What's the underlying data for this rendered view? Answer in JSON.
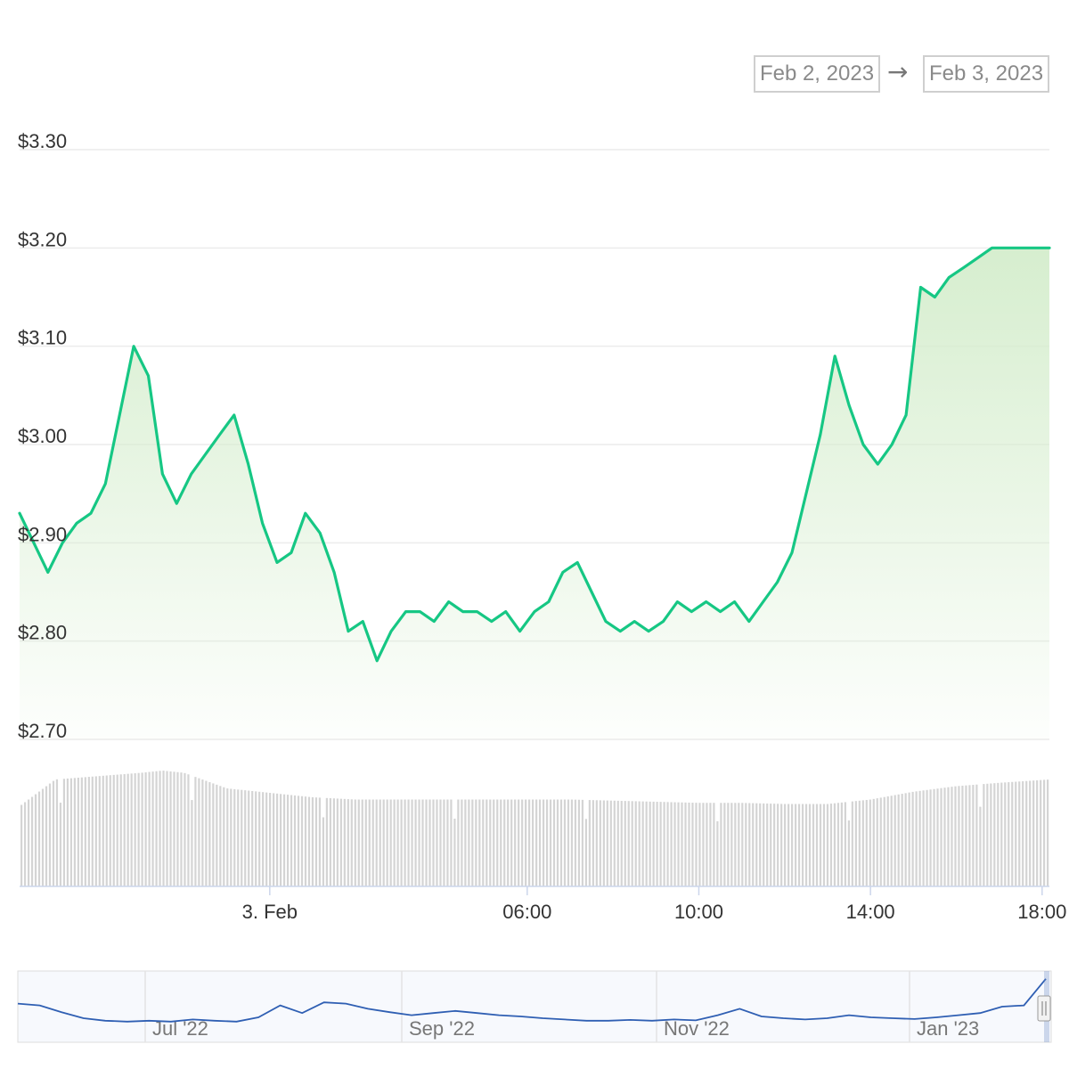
{
  "range_selector": {
    "from": "Feb 2, 2023",
    "arrow": "→",
    "to": "Feb 3, 2023"
  },
  "colors": {
    "line": "#16c784",
    "area_top": "#d4edcc",
    "volume": "#d4d4d4",
    "navigator_line": "#2f5fb3",
    "grid": "#ececec"
  },
  "chart_data": {
    "type": "line",
    "title": "",
    "xlabel": "",
    "ylabel": "",
    "y_tick_labels": [
      "$3.30",
      "$3.20",
      "$3.10",
      "$3.00",
      "$2.90",
      "$2.80",
      "$2.70"
    ],
    "y_ticks": [
      3.3,
      3.2,
      3.1,
      3.0,
      2.9,
      2.8,
      2.7
    ],
    "ylim": [
      2.7,
      3.3
    ],
    "x_tick_labels": [
      "3. Feb",
      "06:00",
      "10:00",
      "14:00",
      "18:00"
    ],
    "x_ticks_hours": [
      0,
      6,
      10,
      14,
      18
    ],
    "xlim_hours": [
      -5.83,
      18.17
    ],
    "grid": true,
    "legend": "none",
    "series": [
      {
        "x_hours": [
          -5.83,
          -5.5,
          -5.17,
          -4.83,
          -4.5,
          -4.17,
          -3.83,
          -3.5,
          -3.17,
          -2.83,
          -2.5,
          -2.17,
          -1.83,
          -1.5,
          -1.17,
          -0.83,
          -0.5,
          -0.17,
          0.17,
          0.5,
          0.83,
          1.17,
          1.5,
          1.83,
          2.17,
          2.5,
          2.83,
          3.17,
          3.5,
          3.83,
          4.17,
          4.5,
          4.83,
          5.17,
          5.5,
          5.83,
          6.17,
          6.5,
          6.83,
          7.17,
          7.5,
          7.83,
          8.17,
          8.5,
          8.83,
          9.17,
          9.5,
          9.83,
          10.17,
          10.5,
          10.83,
          11.17,
          11.5,
          11.83,
          12.17,
          12.5,
          12.83,
          13.17,
          13.5,
          13.83,
          14.17,
          14.5,
          14.83,
          15.17,
          15.5,
          15.83,
          16.17,
          16.5,
          16.83,
          17.17,
          17.5,
          17.83,
          18.17
        ],
        "values": [
          2.93,
          2.9,
          2.87,
          2.9,
          2.92,
          2.93,
          2.96,
          3.03,
          3.1,
          3.07,
          2.97,
          2.94,
          2.97,
          2.99,
          3.01,
          3.03,
          2.98,
          2.92,
          2.88,
          2.89,
          2.93,
          2.91,
          2.87,
          2.81,
          2.82,
          2.78,
          2.81,
          2.83,
          2.83,
          2.82,
          2.84,
          2.83,
          2.83,
          2.82,
          2.83,
          2.81,
          2.83,
          2.84,
          2.87,
          2.88,
          2.85,
          2.82,
          2.81,
          2.82,
          2.81,
          2.82,
          2.84,
          2.83,
          2.84,
          2.83,
          2.84,
          2.82,
          2.84,
          2.86,
          2.89,
          2.95,
          3.01,
          3.09,
          3.04,
          3.0,
          2.98,
          3.0,
          3.03,
          3.16,
          3.15,
          3.17,
          3.18,
          3.19,
          3.2,
          3.2,
          3.2,
          3.2,
          3.2
        ]
      }
    ],
    "volume": {
      "note_free": true,
      "x_hours": [
        -5.83,
        -5.0,
        -4.0,
        -3.0,
        -2.5,
        -2.0,
        -1.0,
        0.0,
        1.0,
        2.0,
        3.0,
        4.0,
        5.0,
        6.0,
        7.0,
        8.0,
        9.0,
        10.0,
        11.0,
        12.0,
        13.0,
        14.0,
        15.0,
        16.0,
        17.0,
        18.17
      ],
      "values": [
        0.72,
        0.96,
        0.99,
        1.02,
        1.04,
        1.02,
        0.88,
        0.84,
        0.8,
        0.78,
        0.78,
        0.78,
        0.78,
        0.78,
        0.78,
        0.77,
        0.76,
        0.75,
        0.75,
        0.74,
        0.74,
        0.78,
        0.85,
        0.9,
        0.93,
        0.96
      ]
    },
    "navigator": {
      "x_tick_labels": [
        "Jul '22",
        "Sep '22",
        "Nov '22",
        "Jan '23"
      ],
      "values": [
        0.82,
        0.78,
        0.62,
        0.48,
        0.42,
        0.4,
        0.42,
        0.4,
        0.45,
        0.42,
        0.4,
        0.5,
        0.78,
        0.6,
        0.85,
        0.82,
        0.7,
        0.62,
        0.55,
        0.6,
        0.65,
        0.6,
        0.55,
        0.52,
        0.48,
        0.45,
        0.42,
        0.42,
        0.44,
        0.42,
        0.45,
        0.43,
        0.55,
        0.7,
        0.52,
        0.48,
        0.45,
        0.48,
        0.55,
        0.5,
        0.48,
        0.46,
        0.5,
        0.55,
        0.6,
        0.75,
        0.78,
        1.4
      ]
    }
  }
}
